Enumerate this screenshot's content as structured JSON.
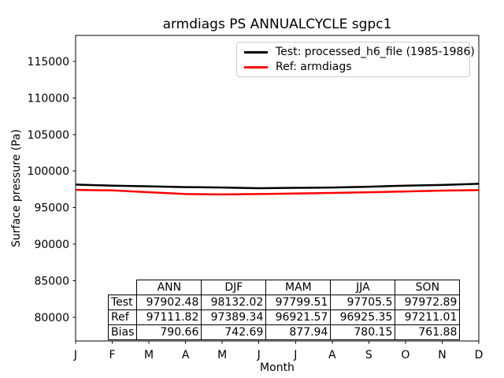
{
  "chart": {
    "title": "armdiags PS ANNUALCYCLE sgpc1",
    "xlabel": "Month",
    "ylabel": "Surface pressure (Pa)"
  },
  "legend": {
    "items": [
      {
        "label": "Test: processed_h6_file (1985-1986)",
        "color": "#000000"
      },
      {
        "label": "Ref: armdiags",
        "color": "#ff0000"
      }
    ]
  },
  "chart_data": {
    "type": "line",
    "title": "armdiags PS ANNUALCYCLE sgpc1",
    "xlabel": "Month",
    "ylabel": "Surface pressure (Pa)",
    "x": [
      "J",
      "F",
      "M",
      "A",
      "M",
      "J",
      "J",
      "A",
      "S",
      "O",
      "N",
      "D"
    ],
    "series": [
      {
        "name": "Test: processed_h6_file (1985-1986)",
        "color": "#000000",
        "values": [
          98150,
          98000,
          97900,
          97800,
          97750,
          97650,
          97700,
          97750,
          97850,
          98000,
          98100,
          98250
        ]
      },
      {
        "name": "Ref: armdiags",
        "color": "#ff0000",
        "values": [
          97420,
          97350,
          97100,
          96850,
          96800,
          96850,
          96925,
          97000,
          97100,
          97200,
          97330,
          97400
        ]
      }
    ],
    "yticks": [
      80000,
      85000,
      90000,
      95000,
      100000,
      105000,
      110000,
      115000
    ],
    "ylim": [
      76750,
      118550
    ],
    "grid": false,
    "legend_position": "upper right"
  },
  "table": {
    "col_headers": [
      "ANN",
      "DJF",
      "MAM",
      "JJA",
      "SON"
    ],
    "rows": [
      {
        "label": "Test",
        "values": [
          "97902.48",
          "98132.02",
          "97799.51",
          "97705.5",
          "97972.89"
        ]
      },
      {
        "label": "Ref",
        "values": [
          "97111.82",
          "97389.34",
          "96921.57",
          "96925.35",
          "97211.01"
        ]
      },
      {
        "label": "Bias",
        "values": [
          "790.66",
          "742.69",
          "877.94",
          "780.15",
          "761.88"
        ]
      }
    ]
  }
}
